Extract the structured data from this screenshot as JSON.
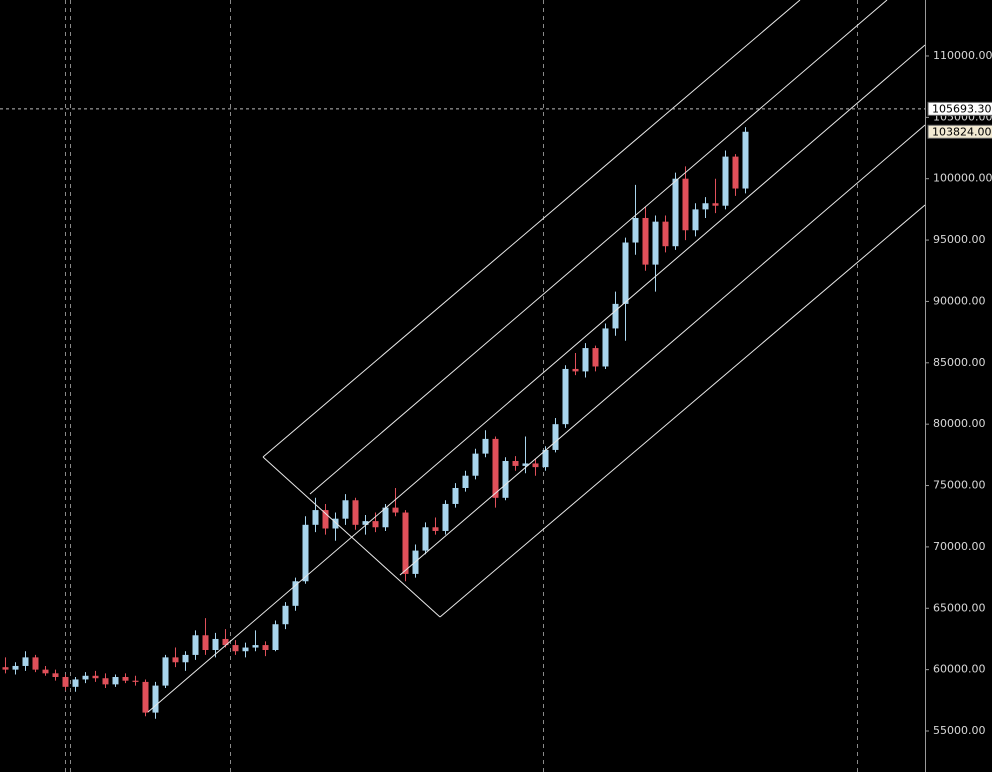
{
  "chart_data": {
    "type": "candlestick",
    "up_color": "#a8d4ec",
    "down_color": "#e0505a",
    "ylim": [
      51660,
      114560
    ],
    "yticks": [
      {
        "value": 55000,
        "label": "55000.00"
      },
      {
        "value": 60000,
        "label": "60000.00"
      },
      {
        "value": 65000,
        "label": "65000.00"
      },
      {
        "value": 70000,
        "label": "70000.00"
      },
      {
        "value": 75000,
        "label": "75000.00"
      },
      {
        "value": 80000,
        "label": "80000.00"
      },
      {
        "value": 85000,
        "label": "85000.00"
      },
      {
        "value": 90000,
        "label": "90000.00"
      },
      {
        "value": 95000,
        "label": "95000.00"
      },
      {
        "value": 100000,
        "label": "100000.00"
      },
      {
        "value": 105000,
        "label": "105000.00"
      },
      {
        "value": 110000,
        "label": "110000.00"
      }
    ],
    "price_markers": [
      {
        "value": 105693.3,
        "label": "105693.30"
      },
      {
        "value": 103824,
        "label": "103824.00"
      }
    ],
    "open": [
      60200,
      60000,
      60300,
      61000,
      60000,
      59700,
      59400,
      58600,
      59200,
      59500,
      59300,
      58800,
      59400,
      59100,
      59000,
      56500,
      58700,
      61000,
      60600,
      61200,
      62800,
      61600,
      62500,
      62000,
      61500,
      61800,
      62000,
      61600,
      63700,
      65200,
      67200,
      71800,
      73000,
      71500,
      72300,
      73800,
      71800,
      72100,
      71600,
      73200,
      72800,
      67800,
      69700,
      71600,
      71300,
      73500,
      74800,
      75800,
      77600,
      78800,
      74000,
      77000,
      76600,
      76800,
      76500,
      77900,
      80000,
      84500,
      84300,
      86200,
      84700,
      87800,
      89800,
      94800,
      96800,
      93000,
      96500,
      94500,
      100000,
      95800,
      97500,
      98000,
      97800,
      101800,
      99200
    ],
    "high": [
      61000,
      60600,
      61500,
      61200,
      60300,
      60000,
      59600,
      59400,
      59800,
      59900,
      59700,
      59600,
      59700,
      59500,
      59200,
      59000,
      61200,
      61800,
      61500,
      63200,
      64200,
      63000,
      63300,
      62400,
      62200,
      63200,
      62300,
      64000,
      65500,
      67500,
      72500,
      74000,
      73500,
      72800,
      74300,
      74000,
      72600,
      72800,
      73500,
      74800,
      73000,
      70200,
      72000,
      72400,
      73800,
      75200,
      76200,
      78000,
      79500,
      79000,
      77300,
      77400,
      79000,
      77200,
      78200,
      80500,
      84800,
      85800,
      86600,
      86400,
      88200,
      90800,
      95200,
      99500,
      97700,
      97000,
      97000,
      100500,
      101000,
      98000,
      98500,
      100000,
      102300,
      102000,
      104200
    ],
    "low": [
      59700,
      59600,
      59900,
      59800,
      59500,
      59100,
      58300,
      58200,
      58900,
      59000,
      58500,
      58600,
      58900,
      58700,
      56200,
      56000,
      58500,
      60200,
      59900,
      60800,
      61200,
      61000,
      61800,
      61200,
      61000,
      61500,
      61100,
      61500,
      63300,
      64800,
      67000,
      71200,
      71000,
      70500,
      71800,
      71400,
      71000,
      71200,
      71300,
      72500,
      67200,
      67500,
      69400,
      71000,
      71000,
      73200,
      74500,
      75500,
      77300,
      73200,
      73800,
      76200,
      76000,
      75800,
      76200,
      77700,
      79700,
      84000,
      83800,
      84300,
      84500,
      87200,
      86800,
      93800,
      92500,
      90800,
      94000,
      94200,
      95000,
      95300,
      96800,
      97200,
      97500,
      98600,
      98800
    ],
    "close": [
      60000,
      60300,
      61000,
      60000,
      59700,
      59400,
      58600,
      59200,
      59500,
      59300,
      58800,
      59400,
      59100,
      59000,
      56500,
      58700,
      61000,
      60600,
      61200,
      62800,
      61600,
      62500,
      62000,
      61500,
      61800,
      62000,
      61600,
      63700,
      65200,
      67200,
      71800,
      73000,
      71500,
      72300,
      73800,
      71800,
      72100,
      71600,
      73200,
      72800,
      67800,
      69700,
      71600,
      71300,
      73500,
      74800,
      75800,
      77600,
      78800,
      74000,
      77000,
      76600,
      76800,
      76500,
      77900,
      80000,
      84500,
      84300,
      86200,
      84700,
      87800,
      89800,
      94800,
      96800,
      93000,
      96500,
      94500,
      100000,
      95800,
      97500,
      98000,
      97800,
      101800,
      99200,
      103824
    ]
  }
}
